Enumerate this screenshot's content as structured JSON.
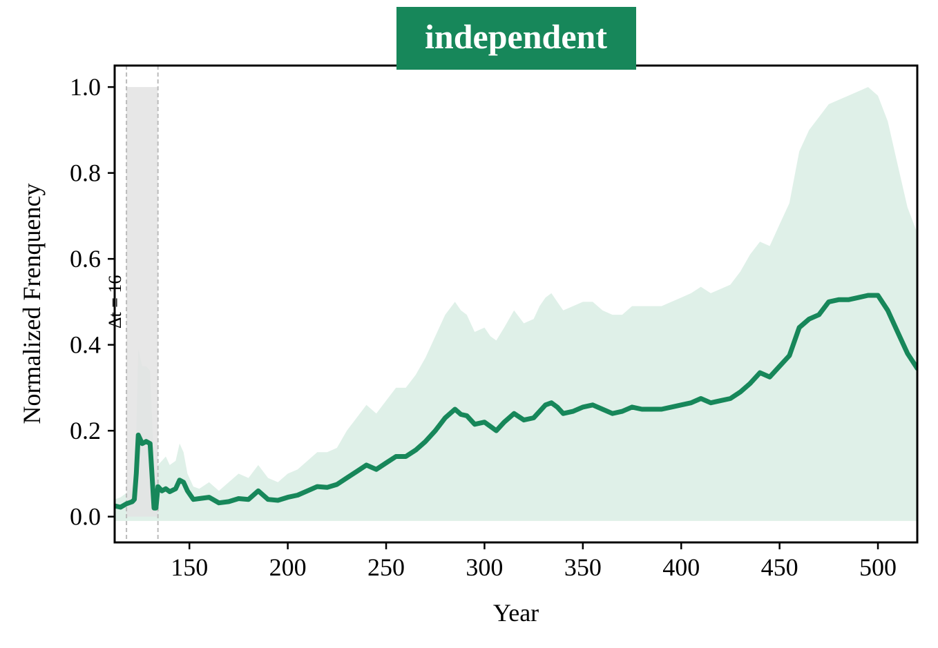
{
  "chart_data": {
    "type": "line",
    "title": "independent",
    "xlabel": "Year",
    "ylabel": "Normalized Frenquency",
    "xlim": [
      112,
      520
    ],
    "ylim": [
      -0.06,
      1.05
    ],
    "xticks": [
      150,
      200,
      250,
      300,
      350,
      400,
      450,
      500
    ],
    "yticks": [
      0.0,
      0.2,
      0.4,
      0.6,
      0.8,
      1.0
    ],
    "xtick_labels": [
      "150",
      "200",
      "250",
      "300",
      "350",
      "400",
      "450",
      "500"
    ],
    "ytick_labels": [
      "0.0",
      "0.2",
      "0.4",
      "0.6",
      "0.8",
      "1.0"
    ],
    "grid": false,
    "colors": {
      "line": "#17875a",
      "band": "#dff0e8",
      "highlight": "#e3e3e3",
      "title_bg": "#17875a"
    },
    "highlight_region": {
      "x0": 118,
      "x1": 134,
      "y0": 0.0,
      "y1": 1.0
    },
    "annotation": {
      "text": "Δt = 16",
      "x": 118
    },
    "series": [
      {
        "x": [
          112,
          115,
          118,
          121,
          122,
          123,
          124,
          126,
          128,
          130,
          132,
          133,
          134,
          136,
          138,
          140,
          143,
          145,
          147,
          149,
          152,
          155,
          160,
          165,
          170,
          175,
          180,
          185,
          190,
          195,
          200,
          205,
          210,
          215,
          220,
          225,
          230,
          235,
          240,
          245,
          250,
          255,
          260,
          265,
          270,
          275,
          280,
          285,
          288,
          291,
          295,
          300,
          303,
          306,
          310,
          315,
          320,
          325,
          328,
          331,
          334,
          337,
          340,
          345,
          350,
          355,
          360,
          365,
          370,
          375,
          380,
          385,
          390,
          395,
          400,
          405,
          410,
          415,
          420,
          425,
          430,
          435,
          440,
          445,
          450,
          455,
          460,
          465,
          470,
          475,
          480,
          485,
          490,
          495,
          500,
          505,
          510,
          515,
          520
        ],
        "y": [
          0.025,
          0.022,
          0.03,
          0.035,
          0.04,
          0.1,
          0.19,
          0.17,
          0.175,
          0.17,
          0.02,
          0.02,
          0.07,
          0.06,
          0.065,
          0.058,
          0.065,
          0.085,
          0.08,
          0.06,
          0.04,
          0.042,
          0.045,
          0.032,
          0.035,
          0.042,
          0.04,
          0.06,
          0.04,
          0.038,
          0.045,
          0.05,
          0.06,
          0.07,
          0.068,
          0.075,
          0.09,
          0.105,
          0.12,
          0.11,
          0.125,
          0.14,
          0.14,
          0.155,
          0.175,
          0.2,
          0.23,
          0.25,
          0.238,
          0.235,
          0.215,
          0.22,
          0.21,
          0.2,
          0.22,
          0.24,
          0.225,
          0.23,
          0.245,
          0.26,
          0.265,
          0.255,
          0.24,
          0.245,
          0.255,
          0.26,
          0.25,
          0.24,
          0.245,
          0.255,
          0.25,
          0.25,
          0.25,
          0.255,
          0.26,
          0.265,
          0.275,
          0.265,
          0.27,
          0.275,
          0.29,
          0.31,
          0.335,
          0.325,
          0.35,
          0.375,
          0.44,
          0.46,
          0.47,
          0.5,
          0.505,
          0.505,
          0.51,
          0.515,
          0.515,
          0.48,
          0.43,
          0.38,
          0.345
        ]
      }
    ],
    "band": {
      "x": [
        112,
        115,
        118,
        121,
        122,
        123,
        124,
        126,
        128,
        130,
        132,
        133,
        134,
        136,
        138,
        140,
        143,
        145,
        147,
        149,
        152,
        155,
        160,
        165,
        170,
        175,
        180,
        185,
        190,
        195,
        200,
        205,
        210,
        215,
        220,
        225,
        230,
        235,
        240,
        245,
        250,
        255,
        260,
        265,
        270,
        275,
        280,
        285,
        288,
        291,
        295,
        300,
        303,
        306,
        310,
        315,
        320,
        325,
        328,
        331,
        334,
        337,
        340,
        345,
        350,
        355,
        360,
        365,
        370,
        375,
        380,
        385,
        390,
        395,
        400,
        405,
        410,
        415,
        420,
        425,
        430,
        435,
        440,
        445,
        450,
        455,
        460,
        465,
        470,
        475,
        480,
        485,
        490,
        495,
        500,
        505,
        510,
        515,
        520
      ],
      "lower": [
        -0.01,
        -0.01,
        -0.01,
        -0.01,
        -0.01,
        -0.01,
        -0.01,
        -0.01,
        -0.01,
        -0.01,
        -0.01,
        -0.01,
        -0.01,
        -0.01,
        -0.01,
        -0.01,
        -0.01,
        -0.01,
        -0.01,
        -0.01,
        -0.01,
        -0.01,
        -0.01,
        -0.01,
        -0.01,
        -0.01,
        -0.01,
        -0.01,
        -0.01,
        -0.01,
        -0.01,
        -0.01,
        -0.01,
        -0.01,
        -0.01,
        -0.01,
        -0.01,
        -0.01,
        -0.01,
        -0.01,
        -0.01,
        -0.01,
        -0.01,
        -0.01,
        -0.01,
        -0.01,
        -0.01,
        -0.01,
        -0.01,
        -0.01,
        -0.01,
        -0.01,
        -0.01,
        -0.01,
        -0.01,
        -0.01,
        -0.01,
        -0.01,
        -0.01,
        -0.01,
        -0.01,
        -0.01,
        -0.01,
        -0.01,
        -0.01,
        -0.01,
        -0.01,
        -0.01,
        -0.01,
        -0.01,
        -0.01,
        -0.01,
        -0.01,
        -0.01,
        -0.01,
        -0.01,
        -0.01,
        -0.01,
        -0.01,
        -0.01,
        -0.01,
        -0.01,
        -0.01,
        -0.01,
        -0.01,
        -0.01,
        -0.01,
        -0.01,
        -0.01,
        -0.01,
        -0.01,
        -0.01,
        -0.01,
        -0.01,
        -0.01,
        -0.01,
        -0.01,
        -0.01,
        -0.01
      ],
      "upper": [
        0.04,
        0.045,
        0.055,
        0.07,
        0.09,
        0.2,
        0.39,
        0.35,
        0.35,
        0.34,
        0.12,
        0.1,
        0.12,
        0.13,
        0.14,
        0.12,
        0.13,
        0.17,
        0.15,
        0.1,
        0.07,
        0.065,
        0.08,
        0.06,
        0.08,
        0.1,
        0.09,
        0.12,
        0.09,
        0.08,
        0.1,
        0.11,
        0.13,
        0.15,
        0.15,
        0.16,
        0.2,
        0.23,
        0.26,
        0.24,
        0.27,
        0.3,
        0.3,
        0.33,
        0.37,
        0.42,
        0.47,
        0.5,
        0.48,
        0.47,
        0.43,
        0.44,
        0.42,
        0.41,
        0.44,
        0.48,
        0.45,
        0.46,
        0.49,
        0.51,
        0.52,
        0.5,
        0.48,
        0.49,
        0.5,
        0.5,
        0.48,
        0.47,
        0.47,
        0.49,
        0.49,
        0.49,
        0.49,
        0.5,
        0.51,
        0.52,
        0.535,
        0.52,
        0.53,
        0.54,
        0.57,
        0.61,
        0.64,
        0.63,
        0.68,
        0.73,
        0.85,
        0.9,
        0.93,
        0.96,
        0.97,
        0.98,
        0.99,
        1.0,
        0.98,
        0.92,
        0.82,
        0.72,
        0.66
      ]
    }
  }
}
